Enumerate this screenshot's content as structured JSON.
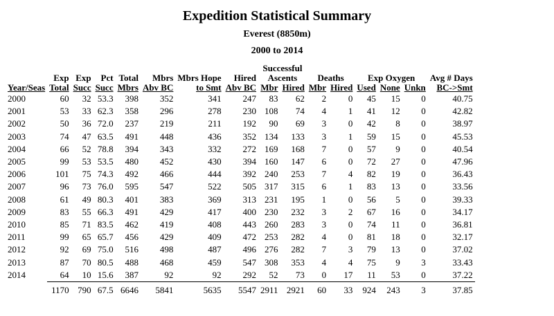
{
  "title": "Expedition Statistical Summary",
  "subtitle": "Everest (8850m)",
  "period": "2000 to 2014",
  "groups": {
    "ascents": [
      "Successful",
      "Ascents"
    ],
    "deaths": "Deaths",
    "oxygen": "Exp Oxygen",
    "days": "Avg # Days"
  },
  "columns": [
    {
      "top": "",
      "bottom": "Year/Seas"
    },
    {
      "top": "Exp",
      "bottom": "Total"
    },
    {
      "top": "Exp",
      "bottom": "Succ"
    },
    {
      "top": "Pct",
      "bottom": "Succ"
    },
    {
      "top": "Total",
      "bottom": "Mbrs"
    },
    {
      "top": "Mbrs",
      "bottom": "Abv BC"
    },
    {
      "top": "Mbrs Hope",
      "bottom": "to Smt"
    },
    {
      "top": "Hired",
      "bottom": "Abv BC"
    },
    {
      "top": "",
      "bottom": "Mbr"
    },
    {
      "top": "",
      "bottom": "Hired"
    },
    {
      "top": "",
      "bottom": "Mbr"
    },
    {
      "top": "",
      "bottom": "Hired"
    },
    {
      "top": "",
      "bottom": "Used"
    },
    {
      "top": "",
      "bottom": "None"
    },
    {
      "top": "",
      "bottom": "Unkn"
    },
    {
      "top": "",
      "bottom": "BC->Smt"
    }
  ],
  "rows": [
    [
      "2000",
      "60",
      "32",
      "53.3",
      "398",
      "352",
      "341",
      "247",
      "83",
      "62",
      "2",
      "0",
      "45",
      "15",
      "0",
      "40.75"
    ],
    [
      "2001",
      "53",
      "33",
      "62.3",
      "358",
      "296",
      "278",
      "230",
      "108",
      "74",
      "4",
      "1",
      "41",
      "12",
      "0",
      "42.82"
    ],
    [
      "2002",
      "50",
      "36",
      "72.0",
      "237",
      "219",
      "211",
      "192",
      "90",
      "69",
      "3",
      "0",
      "42",
      "8",
      "0",
      "38.97"
    ],
    [
      "2003",
      "74",
      "47",
      "63.5",
      "491",
      "448",
      "436",
      "352",
      "134",
      "133",
      "3",
      "1",
      "59",
      "15",
      "0",
      "45.53"
    ],
    [
      "2004",
      "66",
      "52",
      "78.8",
      "394",
      "343",
      "332",
      "272",
      "169",
      "168",
      "7",
      "0",
      "57",
      "9",
      "0",
      "40.54"
    ],
    [
      "2005",
      "99",
      "53",
      "53.5",
      "480",
      "452",
      "430",
      "394",
      "160",
      "147",
      "6",
      "0",
      "72",
      "27",
      "0",
      "47.96"
    ],
    [
      "2006",
      "101",
      "75",
      "74.3",
      "492",
      "466",
      "444",
      "392",
      "240",
      "253",
      "7",
      "4",
      "82",
      "19",
      "0",
      "36.43"
    ],
    [
      "2007",
      "96",
      "73",
      "76.0",
      "595",
      "547",
      "522",
      "505",
      "317",
      "315",
      "6",
      "1",
      "83",
      "13",
      "0",
      "33.56"
    ],
    [
      "2008",
      "61",
      "49",
      "80.3",
      "401",
      "383",
      "369",
      "313",
      "231",
      "195",
      "1",
      "0",
      "56",
      "5",
      "0",
      "39.33"
    ],
    [
      "2009",
      "83",
      "55",
      "66.3",
      "491",
      "429",
      "417",
      "400",
      "230",
      "232",
      "3",
      "2",
      "67",
      "16",
      "0",
      "34.17"
    ],
    [
      "2010",
      "85",
      "71",
      "83.5",
      "462",
      "419",
      "408",
      "443",
      "260",
      "283",
      "3",
      "0",
      "74",
      "11",
      "0",
      "36.81"
    ],
    [
      "2011",
      "99",
      "65",
      "65.7",
      "456",
      "429",
      "409",
      "472",
      "253",
      "282",
      "4",
      "0",
      "81",
      "18",
      "0",
      "32.17"
    ],
    [
      "2012",
      "92",
      "69",
      "75.0",
      "516",
      "498",
      "487",
      "496",
      "276",
      "282",
      "7",
      "3",
      "79",
      "13",
      "0",
      "37.02"
    ],
    [
      "2013",
      "87",
      "70",
      "80.5",
      "488",
      "468",
      "459",
      "547",
      "308",
      "353",
      "4",
      "4",
      "75",
      "9",
      "3",
      "33.43"
    ],
    [
      "2014",
      "64",
      "10",
      "15.6",
      "387",
      "92",
      "92",
      "292",
      "52",
      "73",
      "0",
      "17",
      "11",
      "53",
      "0",
      "37.22"
    ]
  ],
  "totals": [
    "",
    "1170",
    "790",
    "67.5",
    "6646",
    "5841",
    "5635",
    "5547",
    "2911",
    "2921",
    "60",
    "33",
    "924",
    "243",
    "3",
    "37.85"
  ]
}
